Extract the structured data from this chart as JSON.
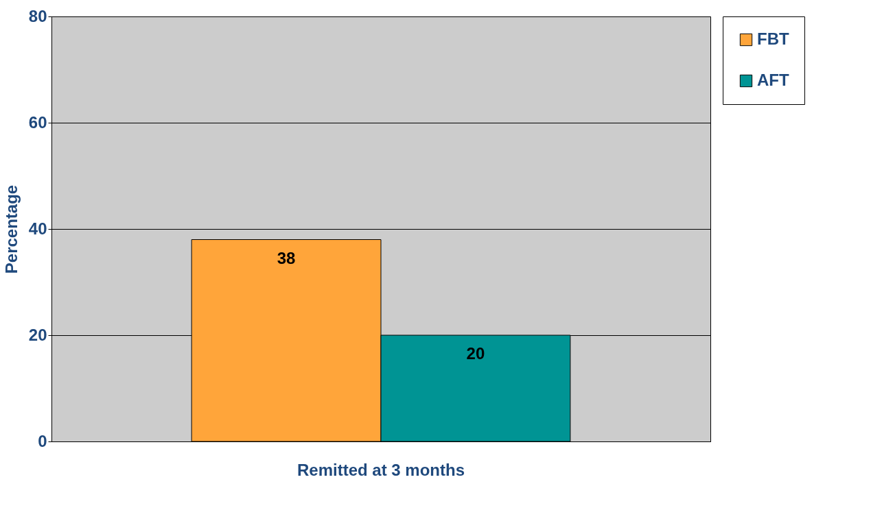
{
  "chart_data": {
    "type": "bar",
    "ylabel": "Percentage",
    "categories": [
      "Remitted at 3 months"
    ],
    "series": [
      {
        "name": "FBT",
        "color": "#ffa53a",
        "values": [
          38
        ]
      },
      {
        "name": "AFT",
        "color": "#009494",
        "values": [
          20
        ]
      }
    ],
    "ylim": [
      0,
      80
    ],
    "yticks": [
      0,
      20,
      40,
      60,
      80
    ],
    "grid": "y",
    "legend": "right",
    "data_labels": true
  }
}
